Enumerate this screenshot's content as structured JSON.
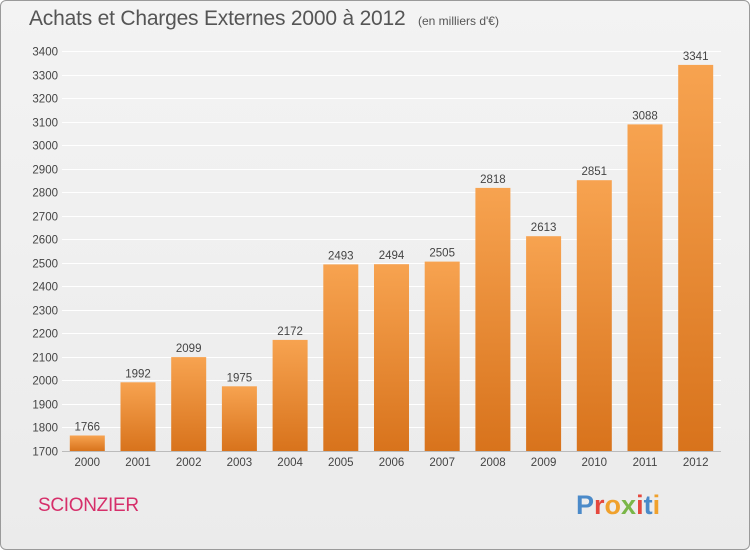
{
  "header": {
    "title": "Achats et Charges Externes 2000 à 2012",
    "subtitle": "(en milliers d'€)"
  },
  "footer": {
    "commune": "SCIONZIER",
    "logo_text": "Proxiti"
  },
  "colors": {
    "bar_light": "#f7a350",
    "bar_dark": "#d8731c",
    "commune": "#d62f6a",
    "logo_letters": [
      "#4b8ac9",
      "#e5483e",
      "#f0a12c",
      "#7ab648",
      "#e5483e",
      "#4b8ac9",
      "#f0a12c"
    ]
  },
  "chart_data": {
    "type": "bar",
    "title": "Achats et Charges Externes 2000 à 2012",
    "categories": [
      "2000",
      "2001",
      "2002",
      "2003",
      "2004",
      "2005",
      "2006",
      "2007",
      "2008",
      "2009",
      "2010",
      "2011",
      "2012"
    ],
    "values": [
      1766,
      1992,
      2099,
      1975,
      2172,
      2493,
      2494,
      2505,
      2818,
      2613,
      2851,
      3088,
      3341
    ],
    "ylim": [
      1700,
      3400
    ],
    "yticks": [
      1700,
      1800,
      1900,
      2000,
      2100,
      2200,
      2300,
      2400,
      2500,
      2600,
      2700,
      2800,
      2900,
      3000,
      3100,
      3200,
      3300,
      3400
    ],
    "grid": true,
    "xlabel": "",
    "ylabel": ""
  }
}
